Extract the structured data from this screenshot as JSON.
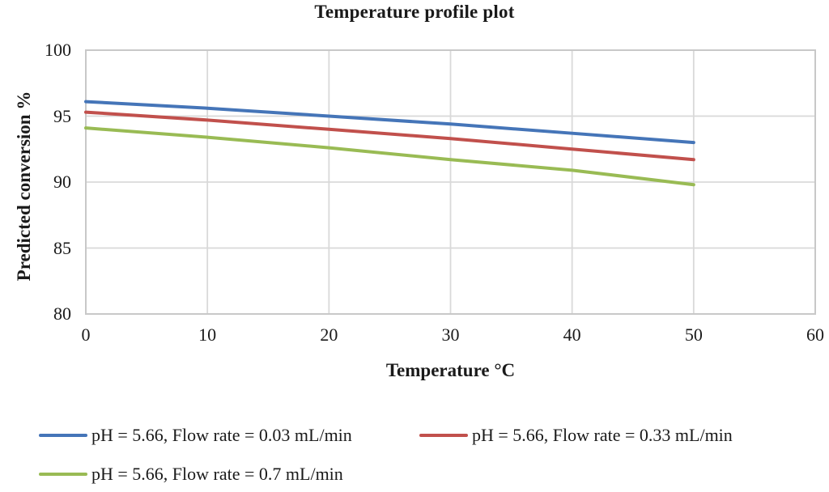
{
  "chart": {
    "title": "Temperature profile plot",
    "y_axis": {
      "label": "Predicted conversion %",
      "ticks": [
        100,
        95,
        90,
        85,
        80
      ]
    },
    "x_axis": {
      "label": "Temperature °C",
      "ticks": [
        0,
        10,
        20,
        30,
        40,
        50,
        60
      ]
    }
  },
  "chart_data": {
    "type": "line",
    "title": "Temperature profile plot",
    "xlabel": "Temperature °C",
    "ylabel": "Predicted conversion %",
    "xlim": [
      0,
      60
    ],
    "ylim": [
      80,
      100
    ],
    "x": [
      0,
      10,
      20,
      30,
      40,
      50
    ],
    "series": [
      {
        "name": "pH = 5.66, Flow rate = 0.03 mL/min",
        "color": "#4575b8",
        "values": [
          96.1,
          95.6,
          95.0,
          94.4,
          93.7,
          93.0
        ]
      },
      {
        "name": "pH = 5.66, Flow rate = 0.33 mL/min",
        "color": "#c1504c",
        "values": [
          95.3,
          94.7,
          94.0,
          93.3,
          92.5,
          91.7
        ]
      },
      {
        "name": "pH = 5.66, Flow rate = 0.7 mL/min",
        "color": "#99bb54",
        "values": [
          94.1,
          93.4,
          92.6,
          91.7,
          90.9,
          89.8
        ]
      }
    ],
    "grid": true,
    "legend_position": "bottom",
    "colors": {
      "gridline": "#d9d9d9",
      "plot_border": "#c8c8c8",
      "text": "#1a1a1a"
    }
  }
}
